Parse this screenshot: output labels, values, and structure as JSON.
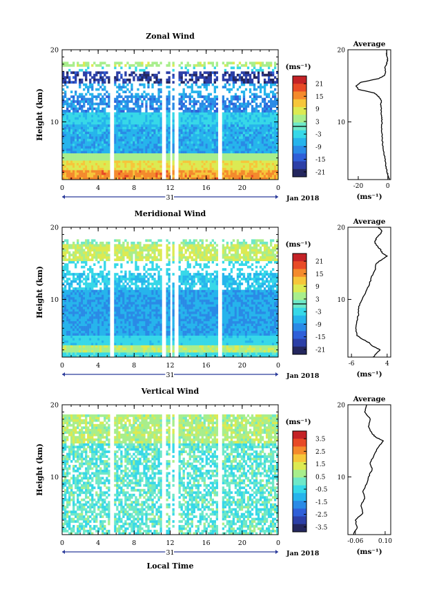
{
  "x_axis_label": "Local Time",
  "date_label": "Jan 2018",
  "day_label": "31",
  "height_label": "Height (km)",
  "average_title": "Average",
  "units_label": "(ms⁻¹)",
  "colormap": [
    "#24275e",
    "#2c3fa6",
    "#2f5fd8",
    "#2a8ae6",
    "#26b4ec",
    "#36d8e8",
    "#6ee8c8",
    "#a8ee8c",
    "#dcea52",
    "#f6c63a",
    "#f48a2c",
    "#e84a26",
    "#c42226"
  ],
  "chart_data": [
    {
      "name": "zonal",
      "type": "heatmap",
      "title": "Zonal Wind",
      "ylabel": "Height (km)",
      "xlabel": "",
      "x_ticks": [
        "0",
        "4",
        "8",
        "12",
        "16",
        "20",
        "0"
      ],
      "x_range_hours": [
        0,
        24
      ],
      "ylim_km": [
        2,
        20
      ],
      "y_ticks": [
        "20",
        "10"
      ],
      "colorbar": {
        "range": [
          -24,
          24
        ],
        "ticks": [
          "21",
          "15",
          "9",
          "3",
          "-3",
          "-9",
          "-15",
          "-21"
        ],
        "zero_line": true
      },
      "data_gaps_hours": [
        [
          5.3,
          5.8
        ],
        [
          11.1,
          11.6
        ],
        [
          12.0,
          12.3
        ],
        [
          12.4,
          13.0
        ],
        [
          17.3,
          17.8
        ]
      ],
      "profile": {
        "title": "Average",
        "xlabel": "(ms⁻¹)",
        "xlim": [
          -27,
          2
        ],
        "x_ticks": [
          "-20",
          "0"
        ],
        "heights_km": [
          2,
          2.5,
          3,
          3.5,
          4,
          5,
          6,
          7,
          8,
          9,
          10,
          10.5,
          11,
          11.5,
          12,
          12.5,
          13,
          13.5,
          14,
          14.5,
          15,
          15.5,
          16,
          16.5,
          17,
          17.5,
          18,
          18.5,
          19,
          19.5,
          20
        ],
        "values": [
          1,
          0.3,
          -0.5,
          -1,
          -1.5,
          -2,
          -3,
          -3.5,
          -4,
          -4,
          -4,
          -4.2,
          -4.5,
          -4.3,
          -4.5,
          -4.8,
          -4.5,
          -6,
          -9,
          -20,
          -21.5,
          -18,
          -6,
          -2,
          -1.5,
          -2,
          -1,
          0,
          -0.5,
          -1,
          -1
        ]
      }
    },
    {
      "name": "meridional",
      "type": "heatmap",
      "title": "Meridional Wind",
      "ylabel": "Height (km)",
      "xlabel": "",
      "x_ticks": [
        "0",
        "4",
        "8",
        "12",
        "16",
        "20",
        "0"
      ],
      "x_range_hours": [
        0,
        24
      ],
      "ylim_km": [
        2,
        20
      ],
      "y_ticks": [
        "20",
        "10"
      ],
      "colorbar": {
        "range": [
          -24,
          24
        ],
        "ticks": [
          "21",
          "15",
          "9",
          "3",
          "-3",
          "-9",
          "-15",
          "-21"
        ],
        "zero_line": true
      },
      "data_gaps_hours": [
        [
          5.3,
          5.8
        ],
        [
          11.1,
          11.6
        ],
        [
          12.0,
          12.3
        ],
        [
          12.4,
          13.0
        ],
        [
          17.3,
          17.8
        ]
      ],
      "profile": {
        "title": "Average",
        "xlabel": "(ms⁻¹)",
        "xlim": [
          -7,
          5
        ],
        "x_ticks": [
          "-6",
          "4"
        ],
        "heights_km": [
          2,
          2.5,
          3,
          3.5,
          4,
          4.5,
          5,
          6,
          7,
          8,
          9,
          10,
          11,
          12,
          13,
          14,
          15,
          15.5,
          16,
          16.5,
          17,
          17.5,
          18,
          18.5,
          19,
          19.5,
          20
        ],
        "values": [
          0,
          1,
          2,
          0,
          -1,
          -3,
          -4.5,
          -4.8,
          -4.5,
          -4,
          -4,
          -3,
          -2,
          -1,
          -0.5,
          0.5,
          1,
          2.5,
          4,
          2.5,
          2,
          1,
          0.5,
          1,
          2,
          2.5,
          1.5
        ]
      }
    },
    {
      "name": "vertical",
      "type": "heatmap",
      "title": "Vertical Wind",
      "ylabel": "Height (km)",
      "xlabel": "Local Time",
      "x_ticks": [
        "0",
        "4",
        "8",
        "12",
        "16",
        "20",
        "0"
      ],
      "x_range_hours": [
        0,
        24
      ],
      "ylim_km": [
        2,
        20
      ],
      "y_ticks": [
        "20",
        "10"
      ],
      "colorbar": {
        "range": [
          -4,
          4
        ],
        "ticks": [
          "3.5",
          "2.5",
          "1.5",
          "0.5",
          "-0.5",
          "-1.5",
          "-2.5",
          "-3.5"
        ],
        "zero_line": false
      },
      "data_gaps_hours": [
        [
          5.3,
          5.8
        ],
        [
          11.1,
          11.6
        ],
        [
          12.0,
          12.3
        ],
        [
          12.4,
          13.0
        ],
        [
          17.3,
          17.8
        ]
      ],
      "profile": {
        "title": "Average",
        "xlabel": "(ms⁻¹)",
        "xlim": [
          -0.1,
          0.13
        ],
        "x_ticks": [
          "-0.06",
          "0.10"
        ],
        "heights_km": [
          2,
          3,
          4,
          5,
          6,
          7,
          8,
          9,
          10,
          11,
          12,
          13,
          14,
          15,
          15.5,
          16,
          17,
          18,
          19,
          20
        ],
        "values": [
          -0.07,
          -0.05,
          -0.06,
          -0.02,
          -0.03,
          -0.01,
          -0.02,
          0.0,
          0.01,
          0.03,
          0.02,
          0.04,
          0.06,
          0.09,
          0.05,
          0.03,
          0.01,
          0.02,
          -0.01,
          0.0
        ]
      }
    }
  ]
}
